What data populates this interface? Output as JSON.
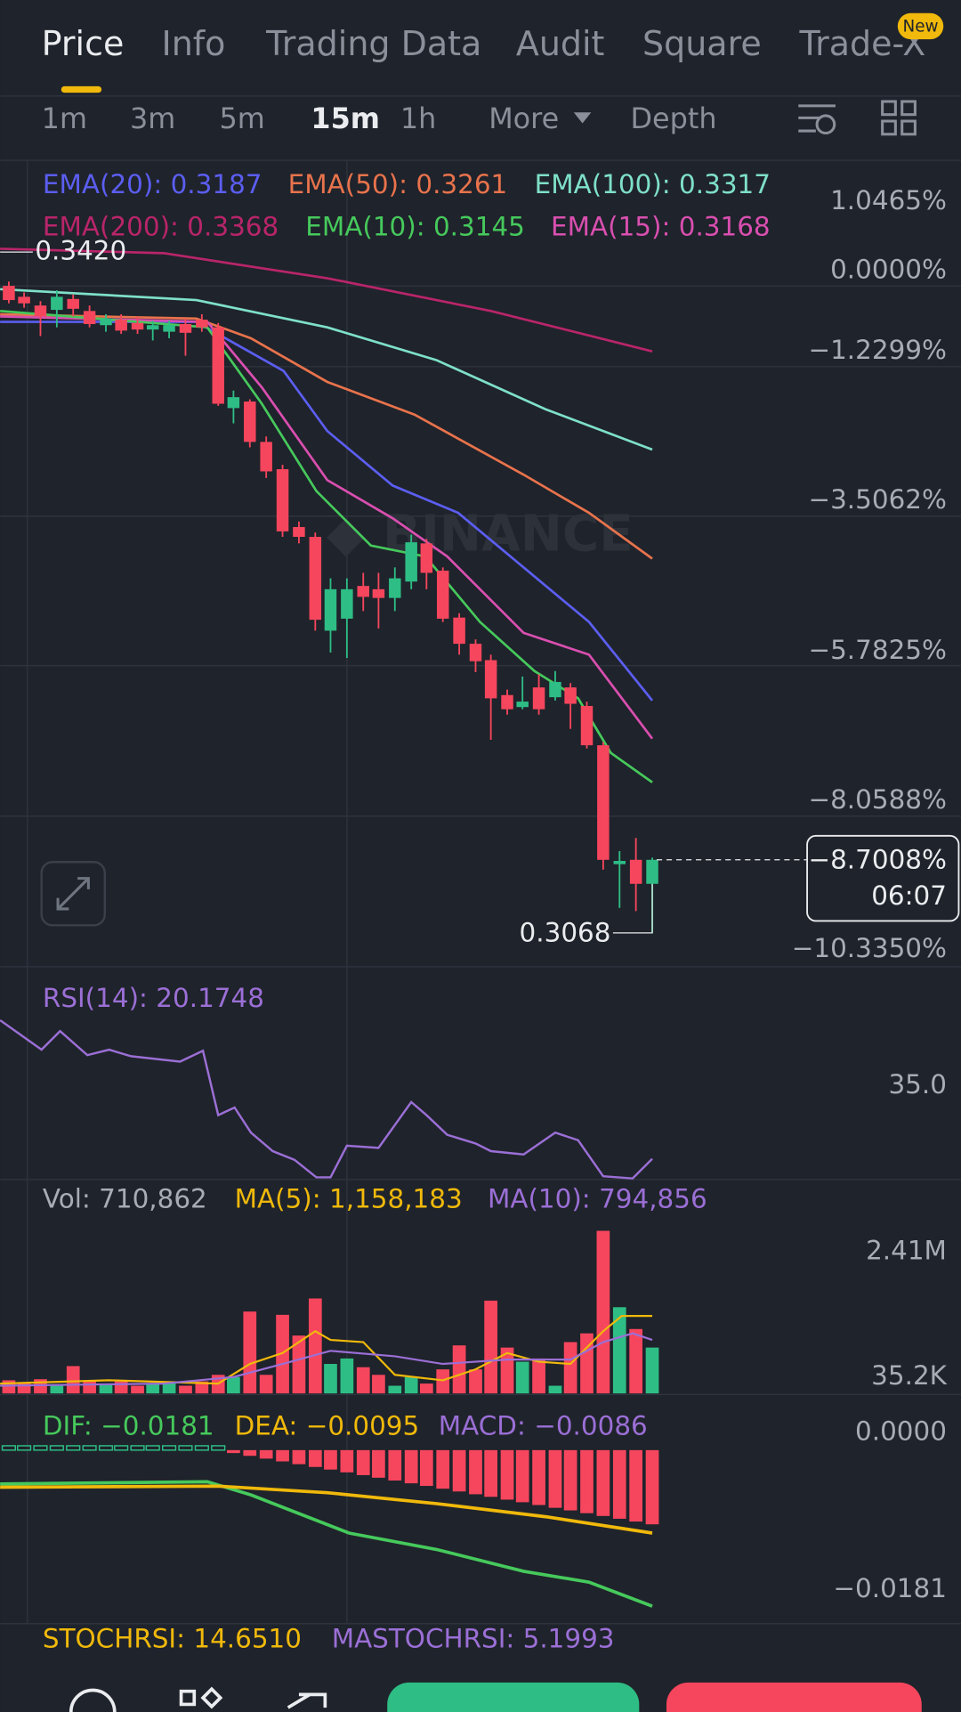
{
  "tabs": [
    "Price",
    "Info",
    "Trading Data",
    "Audit",
    "Square",
    "Trade-X"
  ],
  "badge": "New",
  "intervals": [
    "1m",
    "3m",
    "5m",
    "15m",
    "1h",
    "More",
    "Depth"
  ],
  "ema_legend": [
    "EMA(20): 0.3187",
    "EMA(50): 0.3261",
    "EMA(100): 0.3317",
    "EMA(200): 0.3368",
    "EMA(10): 0.3145",
    "EMA(15): 0.3168"
  ],
  "price_axis": [
    "1.0465%",
    "0.0000%",
    "−1.2299%",
    "−3.5062%",
    "−5.7825%",
    "−8.0588%",
    "−10.3350%"
  ],
  "price_high": "0.3420",
  "price_low": "0.3068",
  "current_change": "−8.7008%",
  "countdown": "06:07",
  "rsi": {
    "legend": "RSI(14): 20.1748",
    "axis": [
      "35.0"
    ]
  },
  "volume": {
    "legend": [
      "Vol: 710,862",
      "MA(5): 1,158,183",
      "MA(10): 794,856"
    ],
    "axis": [
      "2.41M",
      "35.2K"
    ]
  },
  "macd": {
    "legend": [
      "DIF: −0.0181",
      "DEA: −0.0095",
      "MACD: −0.0086"
    ],
    "axis": [
      "0.0000",
      "−0.0181"
    ]
  },
  "stochrsi": [
    "STOCHRSI: 14.6510",
    "MASTOCHRSI: 5.1993"
  ]
}
